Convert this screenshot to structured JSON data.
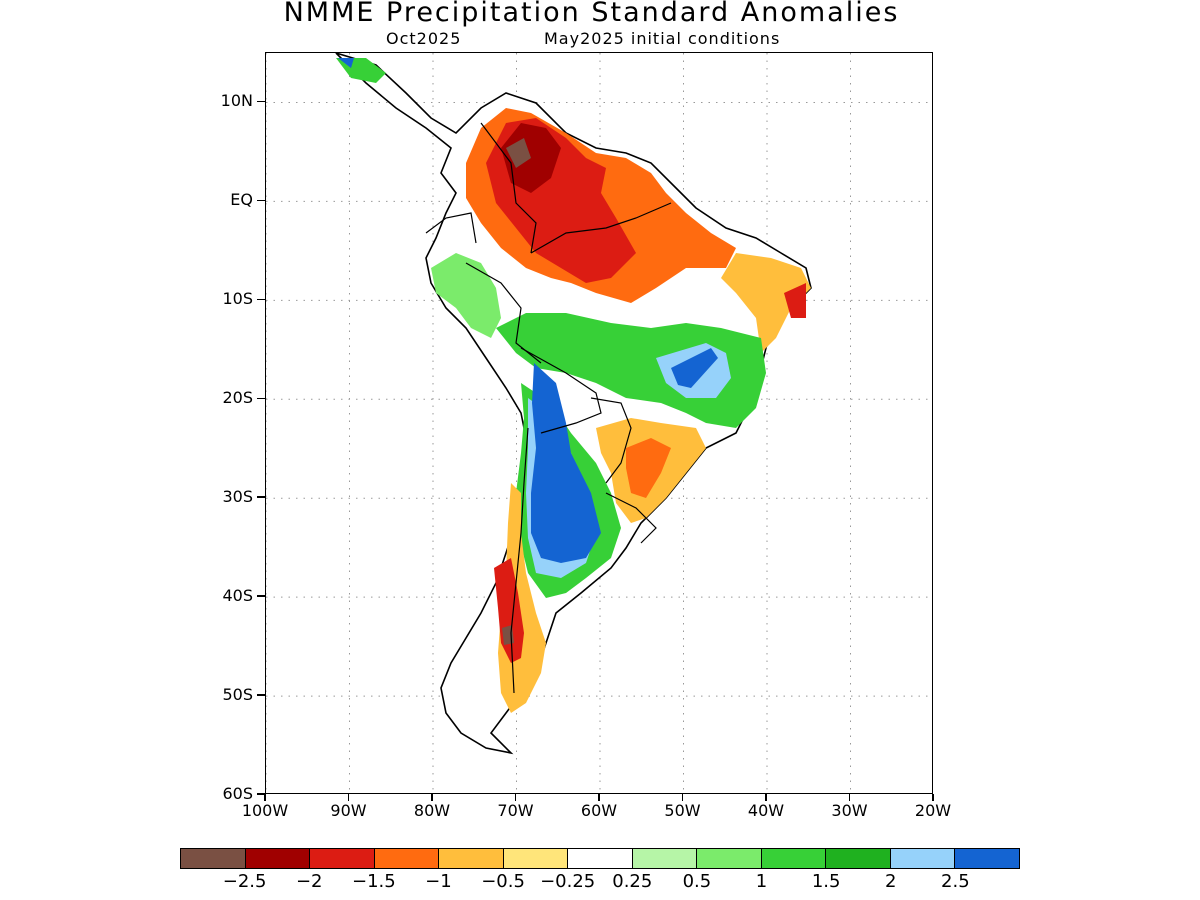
{
  "title": "NMME Precipitation Standard Anomalies",
  "subtitle_left": "Oct2025",
  "subtitle_right": "May2025 initial conditions",
  "map": {
    "lon_range": [
      -100,
      -20
    ],
    "lat_range": [
      -60,
      15
    ],
    "lat_ticks": [
      {
        "value": 10,
        "label": "10N"
      },
      {
        "value": 0,
        "label": "EQ"
      },
      {
        "value": -10,
        "label": "10S"
      },
      {
        "value": -20,
        "label": "20S"
      },
      {
        "value": -30,
        "label": "30S"
      },
      {
        "value": -40,
        "label": "40S"
      },
      {
        "value": -50,
        "label": "50S"
      },
      {
        "value": -60,
        "label": "60S"
      }
    ],
    "lon_ticks": [
      {
        "value": -100,
        "label": "100W"
      },
      {
        "value": -90,
        "label": "90W"
      },
      {
        "value": -80,
        "label": "80W"
      },
      {
        "value": -70,
        "label": "70W"
      },
      {
        "value": -60,
        "label": "60W"
      },
      {
        "value": -50,
        "label": "50W"
      },
      {
        "value": -40,
        "label": "40W"
      },
      {
        "value": -30,
        "label": "30W"
      },
      {
        "value": -20,
        "label": "20W"
      }
    ],
    "grid": "dotted"
  },
  "legend": {
    "colors": [
      "#7a5043",
      "#a00000",
      "#dc1c13",
      "#ff6b10",
      "#ffbe3c",
      "#ffe57a",
      "#ffffff",
      "#b6f5a7",
      "#7beb6b",
      "#37d037",
      "#1fb11f",
      "#96d2fa",
      "#1464d2"
    ],
    "labels": [
      "−2.5",
      "−2",
      "−1.5",
      "−1",
      "−0.5",
      "−0.25",
      "0.25",
      "0.5",
      "1",
      "1.5",
      "2",
      "2.5"
    ]
  }
}
